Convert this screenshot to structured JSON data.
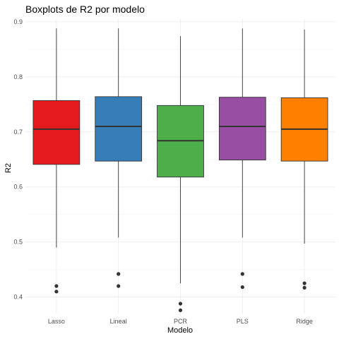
{
  "chart_data": {
    "type": "boxplot",
    "title": "Boxplots de R2 por modelo",
    "xlabel": "Modelo",
    "ylabel": "R2",
    "ylim": [
      0.37,
      0.905
    ],
    "yticks": [
      0.4,
      0.5,
      0.6,
      0.7,
      0.8,
      0.9
    ],
    "ytick_labels": [
      "0.4",
      "0.5",
      "0.6",
      "0.7",
      "0.8",
      "0.9"
    ],
    "grid": true,
    "legend": "none",
    "categories": [
      "Lasso",
      "Lineal",
      "PCR",
      "PLS",
      "Ridge"
    ],
    "series": [
      {
        "category": "Lasso",
        "color": "#e41a1c",
        "min": 0.49,
        "q1": 0.641,
        "median": 0.705,
        "q3": 0.757,
        "max": 0.888,
        "outliers": [
          0.42,
          0.41
        ]
      },
      {
        "category": "Lineal",
        "color": "#377eb8",
        "min": 0.508,
        "q1": 0.647,
        "median": 0.71,
        "q3": 0.764,
        "max": 0.888,
        "outliers": [
          0.442,
          0.42
        ]
      },
      {
        "category": "PCR",
        "color": "#4daf4a",
        "min": 0.425,
        "q1": 0.618,
        "median": 0.684,
        "q3": 0.748,
        "max": 0.874,
        "outliers": [
          0.388,
          0.376
        ]
      },
      {
        "category": "PLS",
        "color": "#984ea3",
        "min": 0.508,
        "q1": 0.649,
        "median": 0.71,
        "q3": 0.763,
        "max": 0.888,
        "outliers": [
          0.442,
          0.418
        ]
      },
      {
        "category": "Ridge",
        "color": "#ff7f00",
        "min": 0.497,
        "q1": 0.647,
        "median": 0.705,
        "q3": 0.762,
        "max": 0.886,
        "outliers": [
          0.425,
          0.417
        ]
      }
    ]
  }
}
